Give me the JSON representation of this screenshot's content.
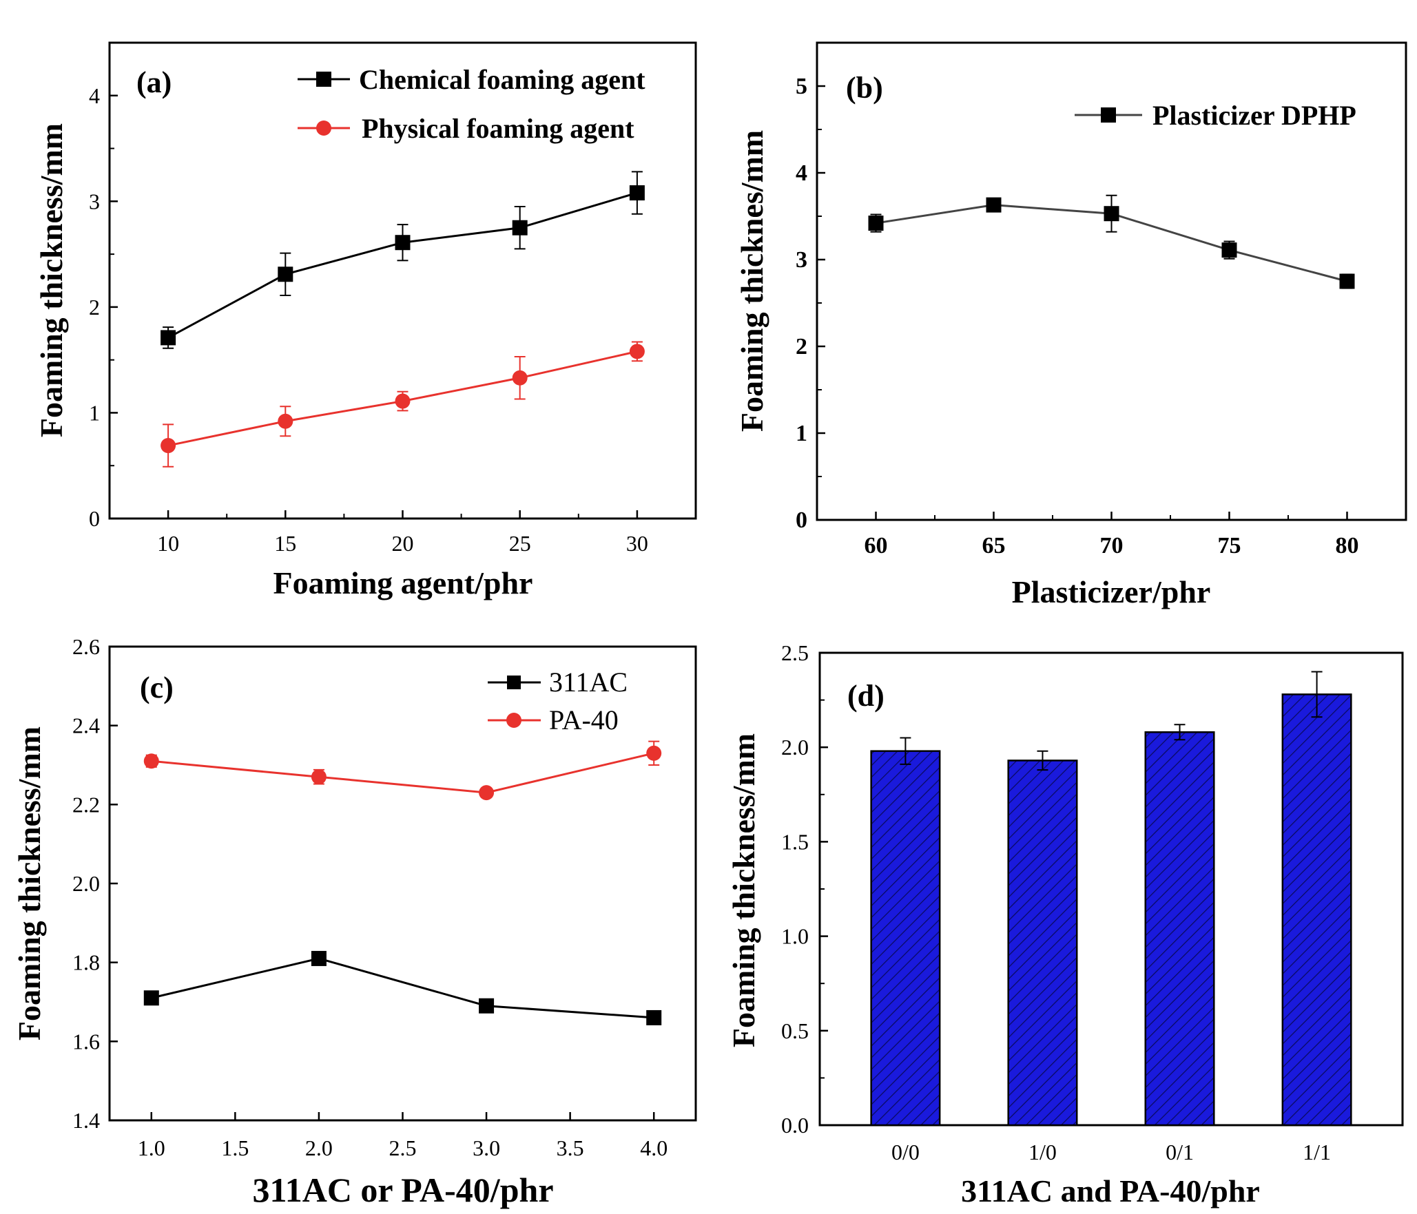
{
  "chart_data": [
    {
      "id": "a",
      "type": "line",
      "panel_label": "(a)",
      "xlabel": "Foaming agent/phr",
      "ylabel": "Foaming thickness/mm",
      "x": [
        10,
        15,
        20,
        25,
        30
      ],
      "xlim": [
        7.5,
        32.5
      ],
      "ylim": [
        0,
        4.5
      ],
      "xticks": [
        10,
        15,
        20,
        25,
        30
      ],
      "yticks": [
        0,
        1,
        2,
        3,
        4
      ],
      "legend_position": "top-right",
      "series": [
        {
          "name": "Chemical foaming agent",
          "color": "#000000",
          "marker": "square",
          "values": [
            1.71,
            2.31,
            2.61,
            2.75,
            3.08
          ],
          "errors": [
            0.1,
            0.2,
            0.17,
            0.2,
            0.2
          ]
        },
        {
          "name": "Physical foaming agent",
          "color": "#e8322d",
          "marker": "circle",
          "values": [
            0.69,
            0.92,
            1.11,
            1.33,
            1.58
          ],
          "errors": [
            0.2,
            0.14,
            0.09,
            0.2,
            0.09
          ]
        }
      ]
    },
    {
      "id": "b",
      "type": "line",
      "panel_label": "(b)",
      "xlabel": "Plasticizer/phr",
      "ylabel": "Foaming thicknes/mm",
      "x": [
        60,
        65,
        70,
        75,
        80
      ],
      "xlim": [
        57.5,
        82.5
      ],
      "ylim": [
        0,
        5.5
      ],
      "xticks": [
        60,
        65,
        70,
        75,
        80
      ],
      "yticks": [
        0,
        1,
        2,
        3,
        4,
        5
      ],
      "legend_position": "top-right",
      "series": [
        {
          "name": "Plasticizer DPHP",
          "color": "#000000",
          "line_color": "#444444",
          "marker": "square",
          "values": [
            3.42,
            3.63,
            3.53,
            3.11,
            2.75
          ],
          "errors": [
            0.1,
            0.06,
            0.21,
            0.1,
            0.08
          ]
        }
      ]
    },
    {
      "id": "c",
      "type": "line",
      "panel_label": "(c)",
      "xlabel": "311AC or PA-40/phr",
      "ylabel": "Foaming thickness/mm",
      "x": [
        1.0,
        2.0,
        3.0,
        4.0
      ],
      "xlim": [
        0.75,
        4.25
      ],
      "ylim": [
        1.4,
        2.6
      ],
      "xticks": [
        "1.0",
        "1.5",
        "2.0",
        "2.5",
        "3.0",
        "3.5",
        "4.0"
      ],
      "yticks": [
        "1.4",
        "1.6",
        "1.8",
        "2.0",
        "2.2",
        "2.4",
        "2.6"
      ],
      "legend_position": "top-right",
      "series": [
        {
          "name": "311AC",
          "color": "#000000",
          "marker": "square",
          "values": [
            1.71,
            1.81,
            1.69,
            1.66
          ],
          "errors": [
            0.01,
            0.015,
            0.015,
            0.008
          ]
        },
        {
          "name": "PA-40",
          "color": "#e8322d",
          "marker": "circle",
          "values": [
            2.31,
            2.27,
            2.23,
            2.33
          ],
          "errors": [
            0.015,
            0.018,
            0.008,
            0.03
          ]
        }
      ]
    },
    {
      "id": "d",
      "type": "bar",
      "panel_label": "(d)",
      "xlabel": "311AC and PA-40/phr",
      "ylabel": "Foaming thickness/mm",
      "categories": [
        "0/0",
        "1/0",
        "0/1",
        "1/1"
      ],
      "values": [
        1.98,
        1.93,
        2.08,
        2.28
      ],
      "errors": [
        0.07,
        0.05,
        0.04,
        0.12
      ],
      "bar_color": "#1a1adc",
      "hatch": "diagonal",
      "ylim": [
        0,
        2.5
      ],
      "yticks": [
        "0.0",
        "0.5",
        "1.0",
        "1.5",
        "2.0",
        "2.5"
      ]
    }
  ]
}
